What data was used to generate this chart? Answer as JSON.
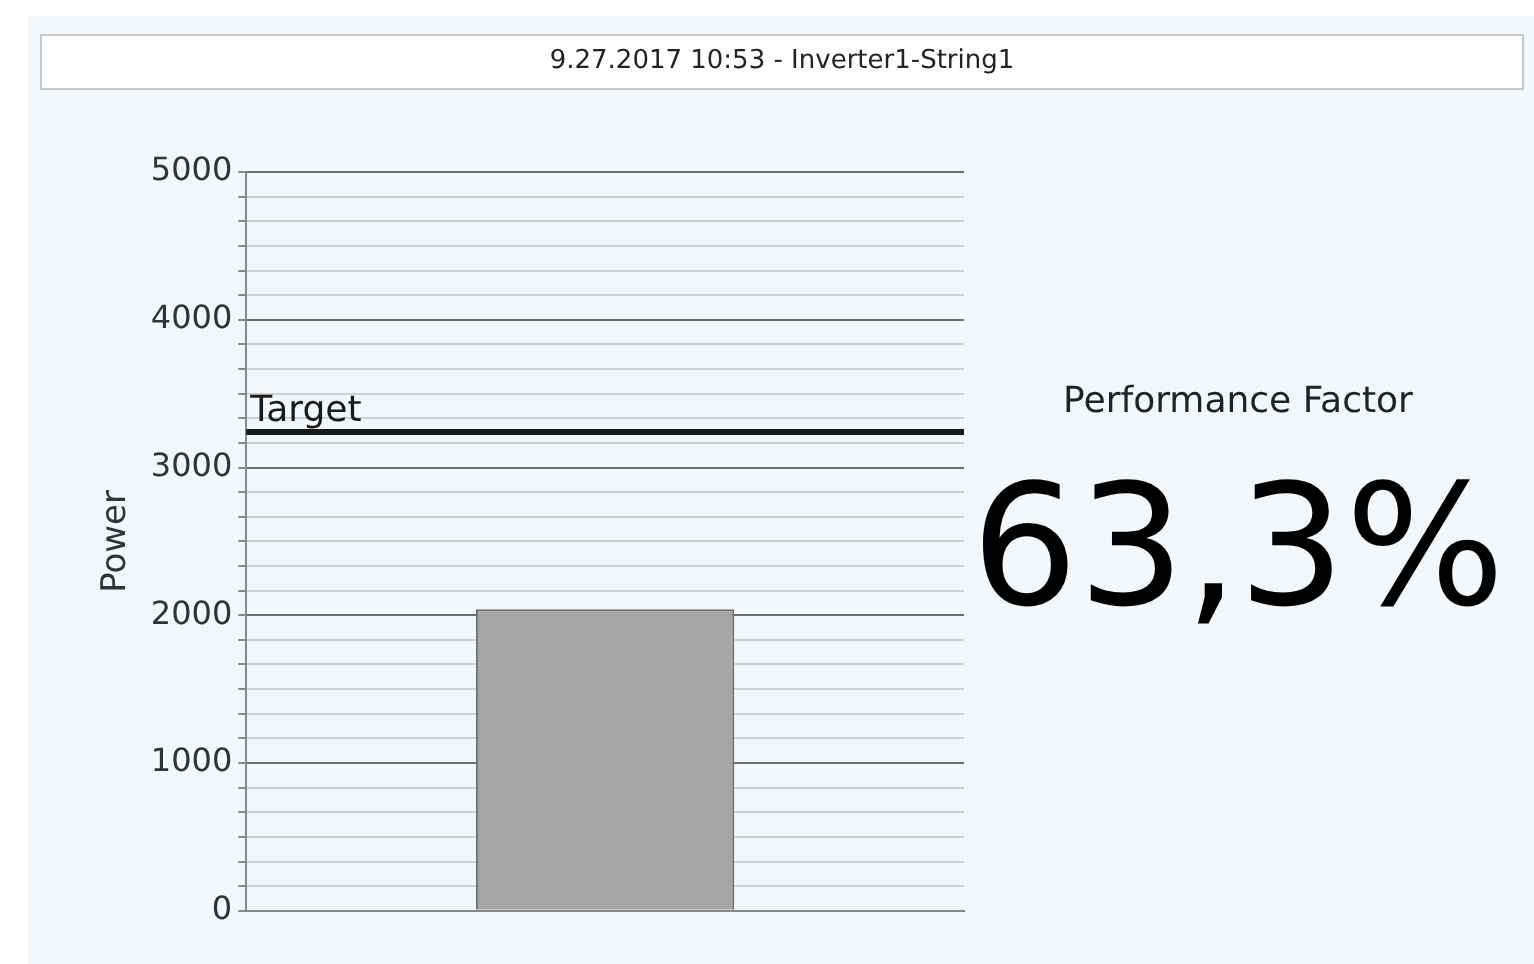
{
  "chart_data": {
    "type": "bar",
    "title": "9.27.2017 10:53 - Inverter1-String1",
    "ylabel": "Power",
    "categories": [
      null
    ],
    "values": [
      2040
    ],
    "color": "#a6a6a6",
    "ylim": [
      0,
      5000
    ],
    "yticks": [
      0,
      {
        "value": 167,
        "label": null
      },
      {
        "value": 333,
        "label": null
      },
      {
        "value": 500,
        "label": null
      },
      {
        "value": 667,
        "label": null
      },
      {
        "value": 833,
        "label": null
      },
      1000,
      {
        "value": 1167,
        "label": null
      },
      {
        "value": 1333,
        "label": null
      },
      {
        "value": 1500,
        "label": null
      },
      {
        "value": 1667,
        "label": null
      },
      {
        "value": 1833,
        "label": null
      },
      2000,
      {
        "value": 2167,
        "label": null
      },
      {
        "value": 2333,
        "label": null
      },
      {
        "value": 2500,
        "label": null
      },
      {
        "value": 2667,
        "label": null
      },
      {
        "value": 2833,
        "label": null
      },
      3000,
      {
        "value": 3167,
        "label": null
      },
      {
        "value": 3333,
        "label": null
      },
      {
        "value": 3500,
        "label": null
      },
      {
        "value": 3667,
        "label": null
      },
      {
        "value": 3833,
        "label": null
      },
      4000,
      {
        "value": 4167,
        "label": null
      },
      {
        "value": 4333,
        "label": null
      },
      {
        "value": 4500,
        "label": null
      },
      {
        "value": 4667,
        "label": null
      },
      {
        "value": 4833,
        "label": null
      },
      5000
    ],
    "grid": "y",
    "ref_lines": [
      {
        "axis": "y",
        "value": 3240,
        "label": "Target",
        "color": "#1a1a1a"
      }
    ],
    "annotations": [
      "Performance Factor",
      "63,3%"
    ]
  }
}
